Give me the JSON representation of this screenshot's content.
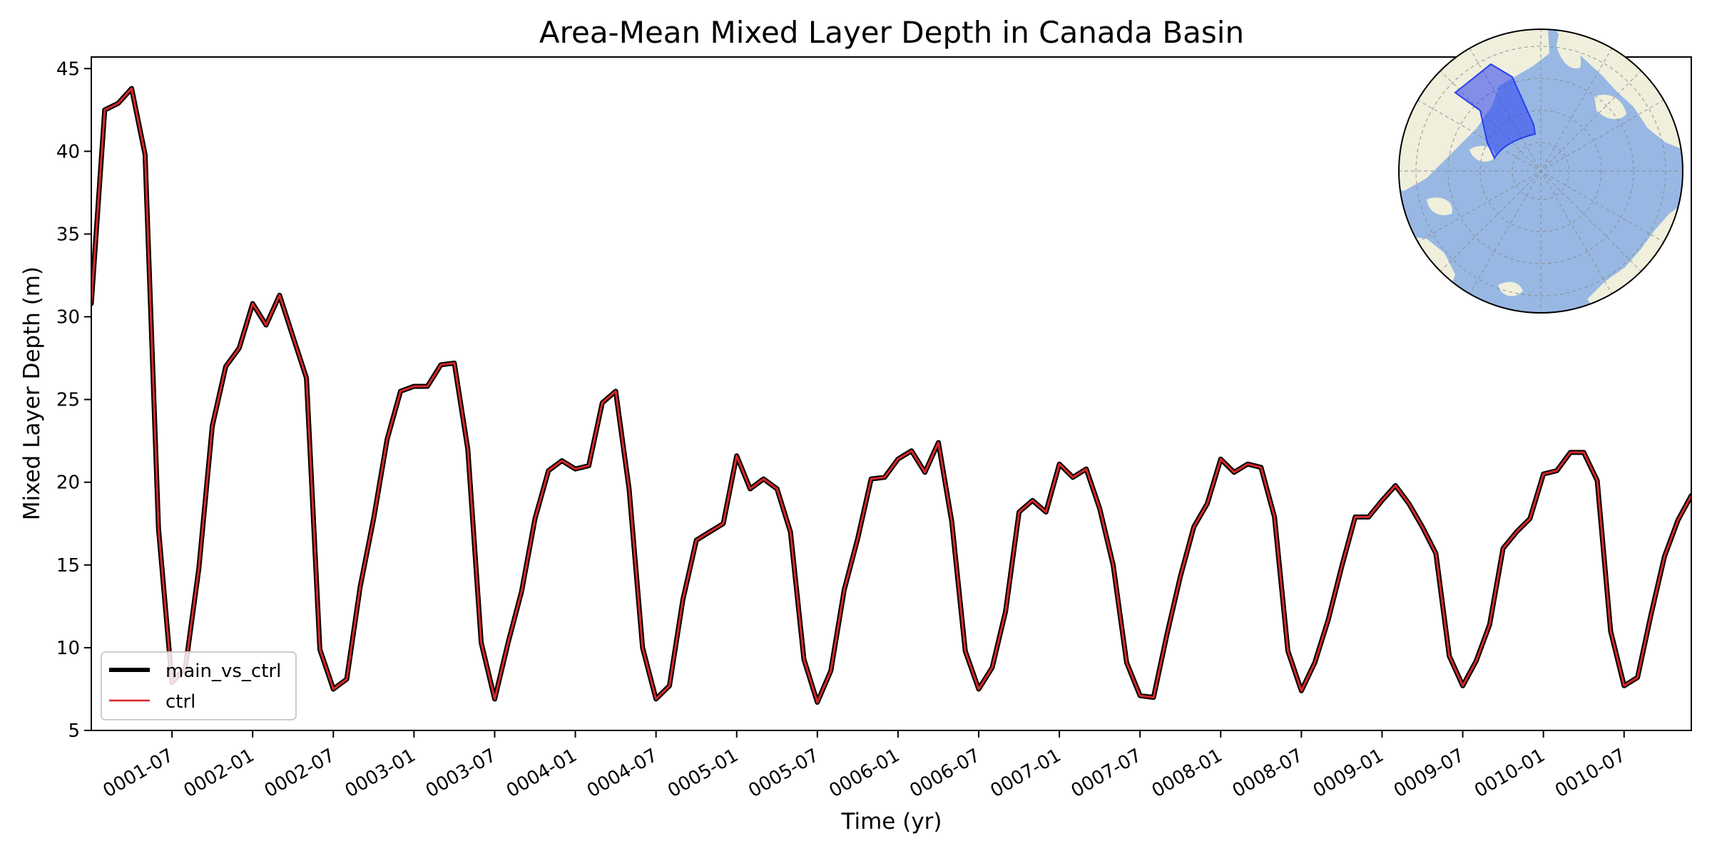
{
  "chart_data": {
    "type": "line",
    "title": "Area-Mean Mixed Layer Depth in Canada Basin",
    "xlabel": "Time (yr)",
    "ylabel": "Mixed Layer Depth (m)",
    "ylim": [
      5,
      45.7
    ],
    "yticks": [
      5,
      10,
      15,
      20,
      25,
      30,
      35,
      40,
      45
    ],
    "x_start": "0001-01",
    "xticks": [
      {
        "label": "0001-07",
        "index": 6
      },
      {
        "label": "0002-01",
        "index": 12
      },
      {
        "label": "0002-07",
        "index": 18
      },
      {
        "label": "0003-01",
        "index": 24
      },
      {
        "label": "0003-07",
        "index": 30
      },
      {
        "label": "0004-01",
        "index": 36
      },
      {
        "label": "0004-07",
        "index": 42
      },
      {
        "label": "0005-01",
        "index": 48
      },
      {
        "label": "0005-07",
        "index": 54
      },
      {
        "label": "0006-01",
        "index": 60
      },
      {
        "label": "0006-07",
        "index": 66
      },
      {
        "label": "0007-01",
        "index": 72
      },
      {
        "label": "0007-07",
        "index": 78
      },
      {
        "label": "0008-01",
        "index": 84
      },
      {
        "label": "0008-07",
        "index": 90
      },
      {
        "label": "0009-01",
        "index": 96
      },
      {
        "label": "0009-07",
        "index": 102
      },
      {
        "label": "0010-01",
        "index": 108
      },
      {
        "label": "0010-07",
        "index": 114
      }
    ],
    "legend": {
      "position": "lower-left",
      "entries": [
        "main_vs_ctrl",
        "ctrl"
      ]
    },
    "series": [
      {
        "name": "main_vs_ctrl",
        "color": "#000000",
        "values": [
          30.8,
          42.5,
          42.9,
          43.8,
          39.8,
          17.2,
          7.9,
          8.8,
          14.8,
          23.4,
          27.0,
          28.1,
          30.8,
          29.5,
          31.3,
          28.8,
          26.3,
          9.9,
          7.5,
          8.1,
          13.7,
          17.8,
          22.6,
          25.5,
          25.8,
          25.8,
          27.1,
          27.2,
          22.0,
          10.3,
          6.9,
          10.3,
          13.4,
          17.8,
          20.7,
          21.3,
          20.8,
          21.0,
          24.8,
          25.5,
          19.6,
          10.0,
          6.9,
          7.7,
          12.9,
          16.5,
          17.0,
          17.5,
          21.6,
          19.6,
          20.2,
          19.6,
          17.0,
          9.3,
          6.7,
          8.6,
          13.5,
          16.6,
          20.2,
          20.3,
          21.4,
          21.9,
          20.6,
          22.4,
          17.6,
          9.8,
          7.5,
          8.8,
          12.2,
          18.2,
          18.9,
          18.2,
          21.1,
          20.3,
          20.8,
          18.4,
          15.0,
          9.1,
          7.1,
          7.0,
          10.8,
          14.3,
          17.3,
          18.7,
          21.4,
          20.6,
          21.1,
          20.9,
          17.9,
          9.8,
          7.4,
          9.1,
          11.7,
          14.9,
          17.9,
          17.9,
          18.9,
          19.8,
          18.7,
          17.3,
          15.7,
          9.5,
          7.7,
          9.2,
          11.4,
          16.0,
          17.0,
          17.8,
          20.5,
          20.7,
          21.8,
          21.8,
          20.1,
          11.0,
          7.7,
          8.2,
          12.0,
          15.5,
          17.7,
          19.2
        ]
      },
      {
        "name": "ctrl",
        "color": "#d62728",
        "values": [
          30.8,
          42.5,
          42.9,
          43.8,
          39.8,
          17.2,
          7.9,
          8.8,
          14.8,
          23.4,
          27.0,
          28.1,
          30.8,
          29.5,
          31.3,
          28.8,
          26.3,
          9.9,
          7.5,
          8.1,
          13.7,
          17.8,
          22.6,
          25.5,
          25.8,
          25.8,
          27.1,
          27.2,
          22.0,
          10.3,
          6.9,
          10.3,
          13.4,
          17.8,
          20.7,
          21.3,
          20.8,
          21.0,
          24.8,
          25.5,
          19.6,
          10.0,
          6.9,
          7.7,
          12.9,
          16.5,
          17.0,
          17.5,
          21.6,
          19.6,
          20.2,
          19.6,
          17.0,
          9.3,
          6.7,
          8.6,
          13.5,
          16.6,
          20.2,
          20.3,
          21.4,
          21.9,
          20.6,
          22.4,
          17.6,
          9.8,
          7.5,
          8.8,
          12.2,
          18.2,
          18.9,
          18.2,
          21.1,
          20.3,
          20.8,
          18.4,
          15.0,
          9.1,
          7.1,
          7.0,
          10.8,
          14.3,
          17.3,
          18.7,
          21.4,
          20.6,
          21.1,
          20.9,
          17.9,
          9.8,
          7.4,
          9.1,
          11.7,
          14.9,
          17.9,
          17.9,
          18.9,
          19.8,
          18.7,
          17.3,
          15.7,
          9.5,
          7.7,
          9.2,
          11.4,
          16.0,
          17.0,
          17.8,
          20.5,
          20.7,
          21.8,
          21.8,
          20.1,
          11.0,
          7.7,
          8.2,
          12.0,
          15.5,
          17.7,
          19.2
        ]
      }
    ]
  },
  "inset_map": {
    "projection": "north-polar-stereographic",
    "ocean_color": "#98b8e3",
    "land_color": "#efefdc",
    "region_name": "Canada Basin",
    "region_color": "#2a3ff0"
  }
}
